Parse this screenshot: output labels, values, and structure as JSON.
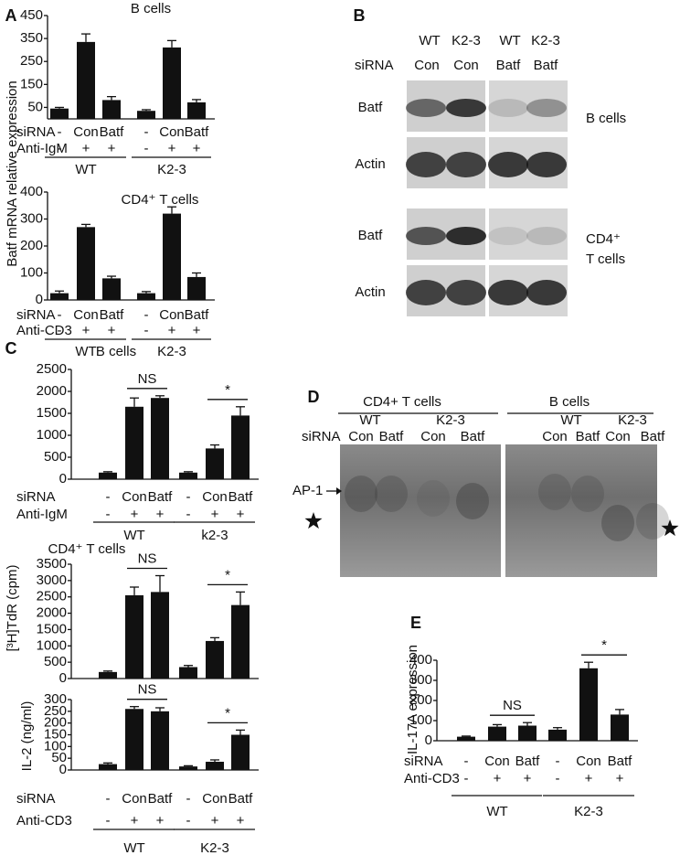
{
  "panel_labels": [
    "A",
    "B",
    "C",
    "D",
    "E"
  ],
  "chart_data": [
    {
      "type": "bar",
      "title": "B cells",
      "y_label": "Batf mRNA relative expression",
      "ylim": [
        0,
        450
      ],
      "yticks": [
        50,
        150,
        250,
        350,
        450
      ],
      "categories_label": "siRNA",
      "categories": [
        "-",
        "Con",
        "Batf",
        "-",
        "Con",
        "Batf"
      ],
      "treatment_label": "Anti-IgM",
      "treatment": [
        "-",
        "+",
        "+",
        "-",
        "+",
        "+"
      ],
      "groups": [
        "WT",
        "K2-3"
      ],
      "values": [
        45,
        335,
        82,
        35,
        311,
        72
      ],
      "errors": [
        5,
        35,
        15,
        5,
        30,
        12
      ],
      "color": "#111111"
    },
    {
      "type": "bar",
      "title": "CD4⁺ T cells",
      "ylim": [
        0,
        400
      ],
      "yticks": [
        0,
        100,
        200,
        300,
        400
      ],
      "categories_label": "siRNA",
      "categories": [
        "-",
        "Con",
        "Batf",
        "-",
        "Con",
        "Batf"
      ],
      "treatment_label": "Anti-CD3",
      "treatment": [
        "-",
        "+",
        "+",
        "-",
        "+",
        "+"
      ],
      "groups": [
        "WT",
        "K2-3"
      ],
      "values": [
        25,
        270,
        80,
        25,
        320,
        85
      ],
      "errors": [
        8,
        10,
        8,
        6,
        25,
        15
      ],
      "color": "#111111"
    },
    {
      "type": "bar",
      "title": "B cells",
      "y_label": "[³H]TdR (cpm)",
      "ylim": [
        0,
        2500
      ],
      "yticks": [
        0,
        500,
        1000,
        1500,
        2000,
        2500
      ],
      "categories_label": "siRNA",
      "categories": [
        "-",
        "Con",
        "Batf",
        "-",
        "Con",
        "Batf"
      ],
      "treatment_label": "Anti-IgM",
      "treatment": [
        "-",
        "+",
        "+",
        "-",
        "+",
        "+"
      ],
      "groups": [
        "WT",
        "k2-3"
      ],
      "values": [
        150,
        1650,
        1850,
        150,
        700,
        1450
      ],
      "errors": [
        20,
        200,
        50,
        20,
        80,
        200
      ],
      "annotations": [
        "NS",
        "*"
      ],
      "color": "#111111"
    },
    {
      "type": "bar",
      "title": "CD4⁺ T cells",
      "ylim": [
        0,
        3500
      ],
      "yticks": [
        0,
        500,
        1000,
        1500,
        2000,
        2500,
        3000,
        3500
      ],
      "values": [
        200,
        2550,
        2650,
        350,
        1150,
        2250
      ],
      "errors": [
        30,
        250,
        500,
        50,
        100,
        400
      ],
      "annotations": [
        "NS",
        "*"
      ],
      "color": "#111111"
    },
    {
      "type": "bar",
      "y_label": "IL-2 (ng/ml)",
      "ylim": [
        0,
        300
      ],
      "yticks": [
        0,
        50,
        100,
        150,
        200,
        250,
        300
      ],
      "categories_label": "siRNA",
      "categories": [
        "-",
        "Con",
        "Batf",
        "-",
        "Con",
        "Batf"
      ],
      "treatment_label": "Anti-CD3",
      "treatment": [
        "-",
        "+",
        "+",
        "-",
        "+",
        "+"
      ],
      "groups": [
        "WT",
        "K2-3"
      ],
      "values": [
        25,
        260,
        250,
        15,
        35,
        150
      ],
      "errors": [
        5,
        10,
        15,
        3,
        8,
        20
      ],
      "annotations": [
        "NS",
        "*"
      ],
      "color": "#111111"
    },
    {
      "type": "bar",
      "y_label": "IL-17A expression",
      "ylim": [
        0,
        400
      ],
      "yticks": [
        0,
        100,
        200,
        300,
        400
      ],
      "categories_label": "siRNA",
      "categories": [
        "-",
        "Con",
        "Batf",
        "-",
        "Con",
        "Batf"
      ],
      "treatment_label": "Anti-CD3",
      "treatment": [
        "-",
        "+",
        "+",
        "-",
        "+",
        "+"
      ],
      "groups": [
        "WT",
        "K2-3"
      ],
      "values": [
        20,
        70,
        75,
        55,
        360,
        130
      ],
      "errors": [
        3,
        10,
        15,
        10,
        30,
        25
      ],
      "annotations": [
        "NS",
        "*"
      ],
      "color": "#111111"
    }
  ],
  "blot_b": {
    "genotypes": [
      "WT",
      "K2-3",
      "WT",
      "K2-3"
    ],
    "sirna_label": "siRNA",
    "sirna": [
      "Con",
      "Con",
      "Batf",
      "Batf"
    ],
    "rows": [
      "Batf",
      "Actin",
      "Batf",
      "Actin"
    ],
    "cell_types": [
      [
        "B cells"
      ],
      [
        "CD4⁺",
        "T cells"
      ]
    ]
  },
  "gel_d": {
    "cell_types": [
      "CD4+ T cells",
      "B cells"
    ],
    "genotypes": [
      "WT",
      "K2-3",
      "WT",
      "K2-3"
    ],
    "sirna_label": "siRNA",
    "sirna": [
      "Con",
      "Batf",
      "Con",
      "Batf",
      "Con",
      "Batf",
      "Con",
      "Batf"
    ],
    "marker": "AP-1"
  }
}
